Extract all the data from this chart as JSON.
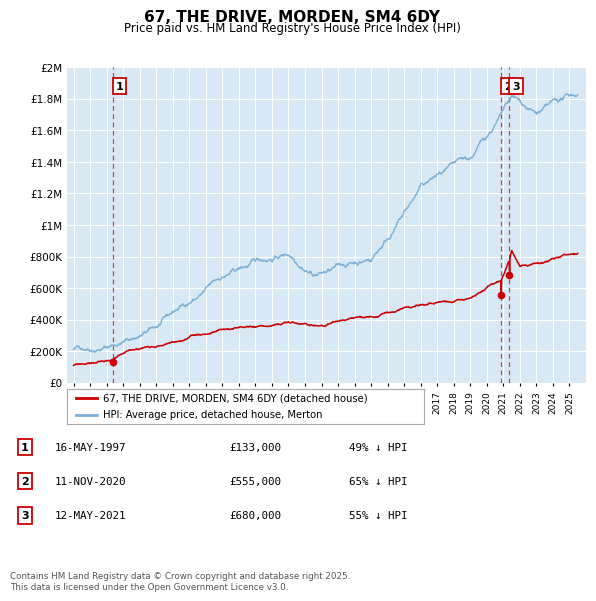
{
  "title": "67, THE DRIVE, MORDEN, SM4 6DY",
  "subtitle": "Price paid vs. HM Land Registry's House Price Index (HPI)",
  "hpi_color": "#7EB0D5",
  "price_color": "#CC0000",
  "bg_color": "#D8E8F5",
  "ylim": [
    0,
    2000000
  ],
  "yticks": [
    0,
    200000,
    400000,
    600000,
    800000,
    1000000,
    1200000,
    1400000,
    1600000,
    1800000,
    2000000
  ],
  "ytick_labels": [
    "£0",
    "£200K",
    "£400K",
    "£600K",
    "£800K",
    "£1M",
    "£1.2M",
    "£1.4M",
    "£1.6M",
    "£1.8M",
    "£2M"
  ],
  "sales": [
    {
      "date_num": 1997.37,
      "price": 133000,
      "label": "1"
    },
    {
      "date_num": 2020.87,
      "price": 555000,
      "label": "2"
    },
    {
      "date_num": 2021.37,
      "price": 680000,
      "label": "3"
    }
  ],
  "legend_line1": "67, THE DRIVE, MORDEN, SM4 6DY (detached house)",
  "legend_line2": "HPI: Average price, detached house, Merton",
  "table": [
    {
      "num": "1",
      "date": "16-MAY-1997",
      "price": "£133,000",
      "hpi": "49% ↓ HPI"
    },
    {
      "num": "2",
      "date": "11-NOV-2020",
      "price": "£555,000",
      "hpi": "65% ↓ HPI"
    },
    {
      "num": "3",
      "date": "12-MAY-2021",
      "price": "£680,000",
      "hpi": "55% ↓ HPI"
    }
  ],
  "footnote": "Contains HM Land Registry data © Crown copyright and database right 2025.\nThis data is licensed under the Open Government Licence v3.0.",
  "vline_dates": [
    1997.37,
    2020.87,
    2021.37
  ]
}
